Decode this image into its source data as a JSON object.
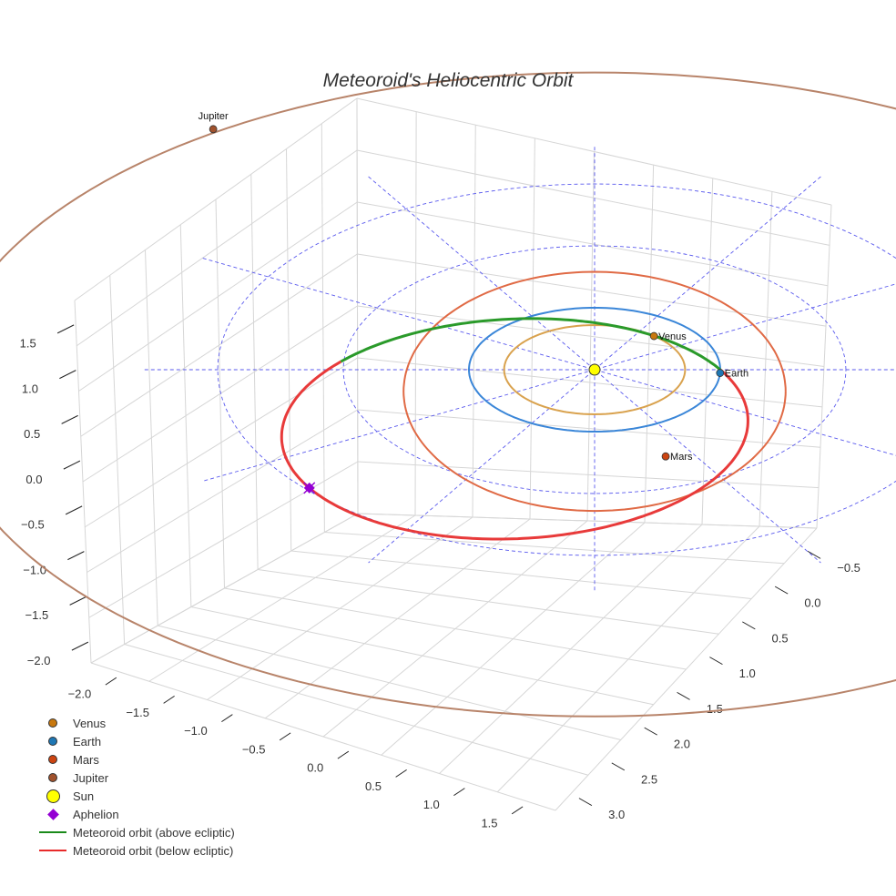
{
  "chart_data": {
    "type": "scatter",
    "title": "Meteoroid's Heliocentric Orbit",
    "x_ticks": [
      "−2.0",
      "−1.5",
      "−1.0",
      "−0.5",
      "0.0",
      "0.5",
      "1.0",
      "1.5"
    ],
    "y_ticks": [
      "−0.5",
      "0.0",
      "0.5",
      "1.0",
      "1.5",
      "2.0",
      "2.5",
      "3.0"
    ],
    "z_ticks": [
      "1.5",
      "1.0",
      "0.5",
      "0.0",
      "−0.5",
      "−1.0",
      "−1.5",
      "−2.0"
    ],
    "planets": [
      {
        "name": "Venus",
        "orbit_au": 0.72,
        "angle_deg": 49,
        "color": "#c8780e",
        "orbit_color": "#d9a24e"
      },
      {
        "name": "Earth",
        "orbit_au": 1.0,
        "angle_deg": -3,
        "color": "#1f77b4",
        "orbit_color": "#3a86d8"
      },
      {
        "name": "Mars",
        "orbit_au": 1.52,
        "angle_deg": -68,
        "color": "#cc4411",
        "orbit_color": "#e06a45"
      },
      {
        "name": "Jupiter",
        "orbit_au": 5.2,
        "angle_deg": 128,
        "color": "#a0522d",
        "orbit_color": "#b8846a"
      }
    ],
    "meteoroid": {
      "perihelion_au": 1.0,
      "aphelion_xy_au": [
        -2.27,
        -1.91
      ],
      "above_color": "#2a9a2a",
      "below_color": "#e83a3a"
    },
    "reference_circles_au": [
      2,
      3
    ],
    "legend_position": "bottom-left"
  },
  "legend": [
    {
      "label": "Venus",
      "kind": "dot",
      "color": "#c8780e"
    },
    {
      "label": "Earth",
      "kind": "dot",
      "color": "#1f77b4"
    },
    {
      "label": "Mars",
      "kind": "dot",
      "color": "#cc4411"
    },
    {
      "label": "Jupiter",
      "kind": "dot",
      "color": "#a0522d"
    },
    {
      "label": "Sun",
      "kind": "sun",
      "color": "#ffff00"
    },
    {
      "label": "Aphelion",
      "kind": "diamond",
      "color": "#9400d3"
    },
    {
      "label": "Meteoroid orbit (above ecliptic)",
      "kind": "line",
      "color": "#1a8a1a"
    },
    {
      "label": "Meteoroid orbit (below ecliptic)",
      "kind": "line",
      "color": "#e82a2a"
    }
  ]
}
